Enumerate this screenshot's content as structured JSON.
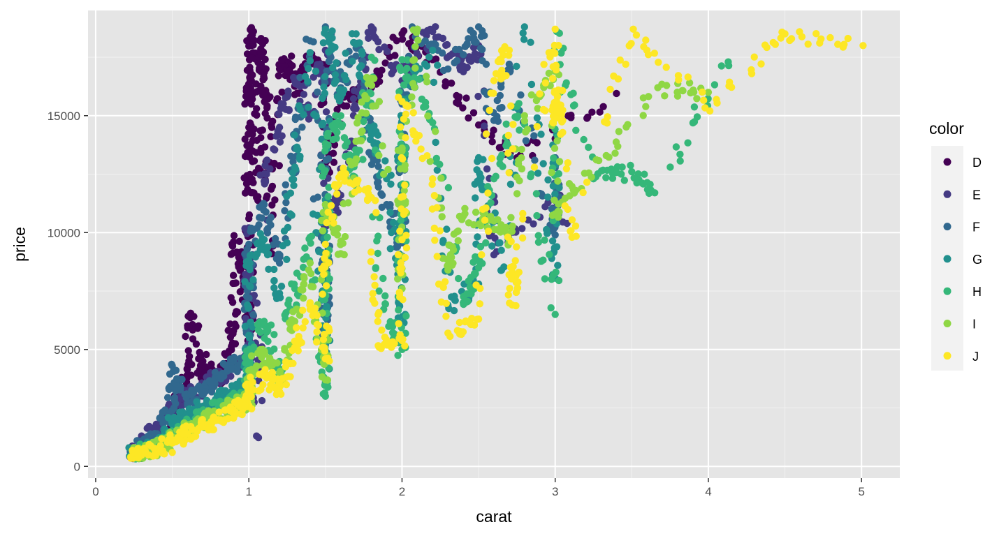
{
  "chart_data": {
    "type": "scatter",
    "title": "",
    "xlabel": "carat",
    "ylabel": "price",
    "xlim": [
      -0.05,
      5.25
    ],
    "ylim": [
      -500,
      19500
    ],
    "x_ticks": [
      0,
      1,
      2,
      3,
      4,
      5
    ],
    "x_tick_labels": [
      "0",
      "1",
      "2",
      "3",
      "4",
      "5"
    ],
    "y_ticks": [
      0,
      5000,
      10000,
      15000
    ],
    "y_tick_labels": [
      "0",
      "5000",
      "10000",
      "15000"
    ],
    "grid": true,
    "panel_background": "#e5e5e5",
    "legend": {
      "title": "color",
      "position": "right",
      "entries": [
        {
          "label": "D",
          "color": "#440154"
        },
        {
          "label": "E",
          "color": "#443a83"
        },
        {
          "label": "F",
          "color": "#31688e"
        },
        {
          "label": "G",
          "color": "#21908d"
        },
        {
          "label": "H",
          "color": "#35b779"
        },
        {
          "label": "I",
          "color": "#8fd744"
        },
        {
          "label": "J",
          "color": "#fde725"
        }
      ]
    },
    "series": [
      {
        "name": "D",
        "color": "#440154",
        "points": [
          [
            0.23,
            400
          ],
          [
            0.3,
            560
          ],
          [
            0.4,
            1100
          ],
          [
            0.5,
            2200
          ],
          [
            0.55,
            3000
          ],
          [
            0.6,
            3900
          ],
          [
            0.62,
            6550
          ],
          [
            0.7,
            3900
          ],
          [
            0.7,
            4500
          ],
          [
            0.8,
            3700
          ],
          [
            0.85,
            4400
          ],
          [
            0.9,
            5800
          ],
          [
            0.9,
            9600
          ],
          [
            0.95,
            8600
          ],
          [
            1.0,
            5200
          ],
          [
            1.0,
            7200
          ],
          [
            1.0,
            10600
          ],
          [
            1.0,
            13300
          ],
          [
            1.0,
            14500
          ],
          [
            1.0,
            16300
          ],
          [
            1.01,
            17600
          ],
          [
            1.03,
            18600
          ],
          [
            1.05,
            15300
          ],
          [
            1.05,
            11500
          ],
          [
            1.08,
            18300
          ],
          [
            1.1,
            16600
          ],
          [
            1.12,
            14900
          ],
          [
            1.15,
            9100
          ],
          [
            1.2,
            17000
          ],
          [
            1.25,
            17300
          ],
          [
            1.3,
            15900
          ],
          [
            1.4,
            17400
          ],
          [
            1.5,
            16900
          ],
          [
            1.5,
            12500
          ],
          [
            1.6,
            15500
          ],
          [
            1.8,
            16200
          ],
          [
            2.0,
            18500
          ],
          [
            2.2,
            17400
          ],
          [
            2.5,
            14600
          ],
          [
            2.75,
            13200
          ],
          [
            3.4,
            15950
          ]
        ]
      },
      {
        "name": "E",
        "color": "#443a83",
        "points": [
          [
            0.23,
            500
          ],
          [
            0.3,
            900
          ],
          [
            0.4,
            1600
          ],
          [
            0.5,
            2500
          ],
          [
            0.6,
            3000
          ],
          [
            0.7,
            3400
          ],
          [
            0.8,
            3900
          ],
          [
            0.9,
            4200
          ],
          [
            1.0,
            4600
          ],
          [
            1.0,
            7600
          ],
          [
            1.0,
            10200
          ],
          [
            1.05,
            1300
          ],
          [
            1.1,
            12200
          ],
          [
            1.2,
            14500
          ],
          [
            1.3,
            16500
          ],
          [
            1.4,
            15100
          ],
          [
            1.5,
            17800
          ],
          [
            1.5,
            9800
          ],
          [
            1.6,
            11600
          ],
          [
            1.7,
            15300
          ],
          [
            1.8,
            18800
          ],
          [
            2.0,
            16500
          ],
          [
            2.2,
            18600
          ],
          [
            2.4,
            17000
          ],
          [
            2.5,
            18000
          ],
          [
            2.6,
            9050
          ],
          [
            3.0,
            11550
          ],
          [
            3.05,
            10450
          ]
        ]
      },
      {
        "name": "F",
        "color": "#31688e",
        "points": [
          [
            0.23,
            500
          ],
          [
            0.3,
            800
          ],
          [
            0.35,
            1000
          ],
          [
            0.4,
            1400
          ],
          [
            0.5,
            2400
          ],
          [
            0.5,
            4300
          ],
          [
            0.6,
            2700
          ],
          [
            0.7,
            3300
          ],
          [
            0.8,
            3800
          ],
          [
            0.9,
            4500
          ],
          [
            1.0,
            4200
          ],
          [
            1.0,
            6800
          ],
          [
            1.0,
            9500
          ],
          [
            1.1,
            11200
          ],
          [
            1.2,
            8700
          ],
          [
            1.3,
            13600
          ],
          [
            1.4,
            18200
          ],
          [
            1.5,
            5500
          ],
          [
            1.5,
            7800
          ],
          [
            1.5,
            10800
          ],
          [
            1.5,
            18800
          ],
          [
            1.6,
            16200
          ],
          [
            1.7,
            17900
          ],
          [
            1.8,
            13300
          ],
          [
            1.9,
            11200
          ],
          [
            2.0,
            9000
          ],
          [
            2.0,
            15500
          ],
          [
            2.1,
            18700
          ],
          [
            2.3,
            17000
          ],
          [
            2.5,
            18800
          ],
          [
            2.6,
            14800
          ],
          [
            2.7,
            17200
          ],
          [
            3.0,
            9900
          ],
          [
            3.0,
            13200
          ]
        ]
      },
      {
        "name": "G",
        "color": "#21908d",
        "points": [
          [
            0.23,
            480
          ],
          [
            0.3,
            700
          ],
          [
            0.4,
            1000
          ],
          [
            0.5,
            1800
          ],
          [
            0.6,
            2100
          ],
          [
            0.7,
            2500
          ],
          [
            0.8,
            2800
          ],
          [
            0.9,
            3200
          ],
          [
            1.0,
            3500
          ],
          [
            1.0,
            5600
          ],
          [
            1.0,
            8800
          ],
          [
            1.1,
            9700
          ],
          [
            1.2,
            7400
          ],
          [
            1.3,
            12800
          ],
          [
            1.4,
            17700
          ],
          [
            1.5,
            3600
          ],
          [
            1.5,
            6700
          ],
          [
            1.5,
            11400
          ],
          [
            1.5,
            18700
          ],
          [
            1.6,
            15800
          ],
          [
            1.7,
            18500
          ],
          [
            1.8,
            14200
          ],
          [
            1.9,
            12300
          ],
          [
            2.0,
            6100
          ],
          [
            2.0,
            10300
          ],
          [
            2.0,
            15700
          ],
          [
            2.2,
            17800
          ],
          [
            2.3,
            6900
          ],
          [
            2.5,
            7800
          ],
          [
            2.5,
            13200
          ],
          [
            2.65,
            8400
          ],
          [
            2.8,
            18800
          ],
          [
            3.0,
            8050
          ],
          [
            3.01,
            14200
          ]
        ]
      },
      {
        "name": "H",
        "color": "#35b779",
        "points": [
          [
            0.23,
            440
          ],
          [
            0.3,
            620
          ],
          [
            0.4,
            900
          ],
          [
            0.5,
            1500
          ],
          [
            0.6,
            1800
          ],
          [
            0.7,
            2100
          ],
          [
            0.8,
            2500
          ],
          [
            0.9,
            2800
          ],
          [
            1.0,
            3100
          ],
          [
            1.0,
            4700
          ],
          [
            1.1,
            6200
          ],
          [
            1.2,
            3900
          ],
          [
            1.3,
            7600
          ],
          [
            1.4,
            9800
          ],
          [
            1.5,
            3000
          ],
          [
            1.5,
            8500
          ],
          [
            1.5,
            13800
          ],
          [
            1.6,
            15000
          ],
          [
            1.7,
            12000
          ],
          [
            1.8,
            17500
          ],
          [
            1.85,
            7500
          ],
          [
            2.0,
            5000
          ],
          [
            2.0,
            11100
          ],
          [
            2.0,
            17400
          ],
          [
            2.2,
            14700
          ],
          [
            2.4,
            7000
          ],
          [
            2.5,
            8500
          ],
          [
            2.6,
            12300
          ],
          [
            2.75,
            15400
          ],
          [
            3.0,
            6500
          ],
          [
            3.01,
            18600
          ],
          [
            3.25,
            12300
          ],
          [
            3.5,
            12600
          ],
          [
            3.65,
            11700
          ],
          [
            4.13,
            17300
          ]
        ]
      },
      {
        "name": "I",
        "color": "#8fd744",
        "points": [
          [
            0.23,
            400
          ],
          [
            0.3,
            560
          ],
          [
            0.4,
            780
          ],
          [
            0.5,
            1200
          ],
          [
            0.6,
            1600
          ],
          [
            0.7,
            1900
          ],
          [
            0.8,
            2200
          ],
          [
            0.9,
            2600
          ],
          [
            1.0,
            2700
          ],
          [
            1.0,
            4100
          ],
          [
            1.1,
            4800
          ],
          [
            1.2,
            3800
          ],
          [
            1.3,
            6200
          ],
          [
            1.4,
            8700
          ],
          [
            1.5,
            3700
          ],
          [
            1.5,
            11200
          ],
          [
            1.6,
            9100
          ],
          [
            1.7,
            13900
          ],
          [
            1.8,
            16600
          ],
          [
            2.0,
            7600
          ],
          [
            2.0,
            13500
          ],
          [
            2.1,
            18700
          ],
          [
            2.3,
            8400
          ],
          [
            2.4,
            10700
          ],
          [
            2.6,
            10500
          ],
          [
            2.7,
            9700
          ],
          [
            2.8,
            15000
          ],
          [
            3.0,
            16900
          ],
          [
            3.0,
            10800
          ],
          [
            3.22,
            12550
          ],
          [
            3.67,
            16200
          ],
          [
            4.0,
            16000
          ]
        ]
      },
      {
        "name": "J",
        "color": "#fde725",
        "points": [
          [
            0.23,
            350
          ],
          [
            0.3,
            480
          ],
          [
            0.4,
            700
          ],
          [
            0.5,
            1000
          ],
          [
            0.6,
            1400
          ],
          [
            0.7,
            1700
          ],
          [
            0.8,
            2000
          ],
          [
            0.9,
            2400
          ],
          [
            1.0,
            2600
          ],
          [
            1.0,
            3300
          ],
          [
            1.1,
            3900
          ],
          [
            1.2,
            3200
          ],
          [
            1.3,
            5100
          ],
          [
            1.4,
            7000
          ],
          [
            1.5,
            4600
          ],
          [
            1.5,
            9500
          ],
          [
            1.6,
            12500
          ],
          [
            1.8,
            11500
          ],
          [
            1.85,
            5100
          ],
          [
            2.0,
            5400
          ],
          [
            2.0,
            9700
          ],
          [
            2.0,
            15600
          ],
          [
            2.2,
            12300
          ],
          [
            2.3,
            5700
          ],
          [
            2.5,
            6300
          ],
          [
            2.6,
            16500
          ],
          [
            2.7,
            17800
          ],
          [
            2.72,
            6900
          ],
          [
            2.74,
            8800
          ],
          [
            3.0,
            18700
          ],
          [
            3.01,
            14900
          ],
          [
            3.02,
            16100
          ],
          [
            3.11,
            9800
          ],
          [
            3.51,
            18700
          ],
          [
            4.01,
            15200
          ],
          [
            4.5,
            18500
          ],
          [
            5.01,
            18000
          ]
        ]
      }
    ]
  }
}
